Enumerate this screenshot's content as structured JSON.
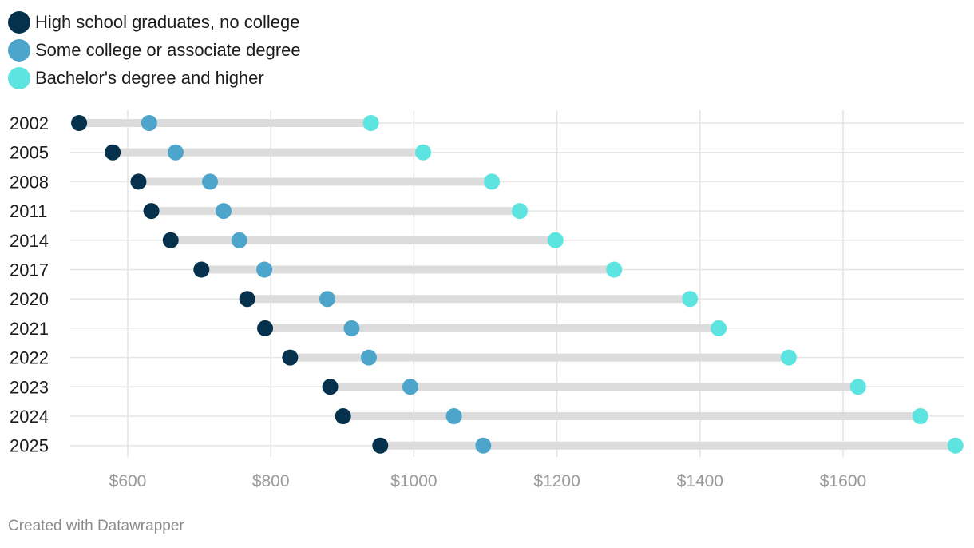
{
  "chart_data": {
    "type": "dot-plot",
    "title": "",
    "xlabel": "",
    "ylabel": "",
    "xlim": [
      520,
      1760
    ],
    "x_ticks": [
      600,
      800,
      1000,
      1200,
      1400,
      1600
    ],
    "x_tick_labels": [
      "$600",
      "$800",
      "$1000",
      "$1200",
      "$1400",
      "$1600"
    ],
    "categories": [
      "2002",
      "2005",
      "2008",
      "2011",
      "2014",
      "2017",
      "2020",
      "2021",
      "2022",
      "2023",
      "2024",
      "2025"
    ],
    "series": [
      {
        "name": "High school graduates, no college",
        "color": "#05314c",
        "values": [
          532,
          579,
          615,
          633,
          660,
          703,
          767,
          792,
          827,
          883,
          901,
          953
        ]
      },
      {
        "name": "Some college or associate degree",
        "color": "#4da5cb",
        "values": [
          630,
          667,
          715,
          734,
          756,
          791,
          879,
          913,
          937,
          995,
          1056,
          1097
        ]
      },
      {
        "name": "Bachelor's degree and higher",
        "color": "#5de3e0",
        "values": [
          940,
          1013,
          1109,
          1148,
          1198,
          1280,
          1386,
          1426,
          1524,
          1621,
          1708,
          1757
        ]
      }
    ],
    "grid": true,
    "legend_position": "top-left"
  },
  "footer": "Created with Datawrapper"
}
